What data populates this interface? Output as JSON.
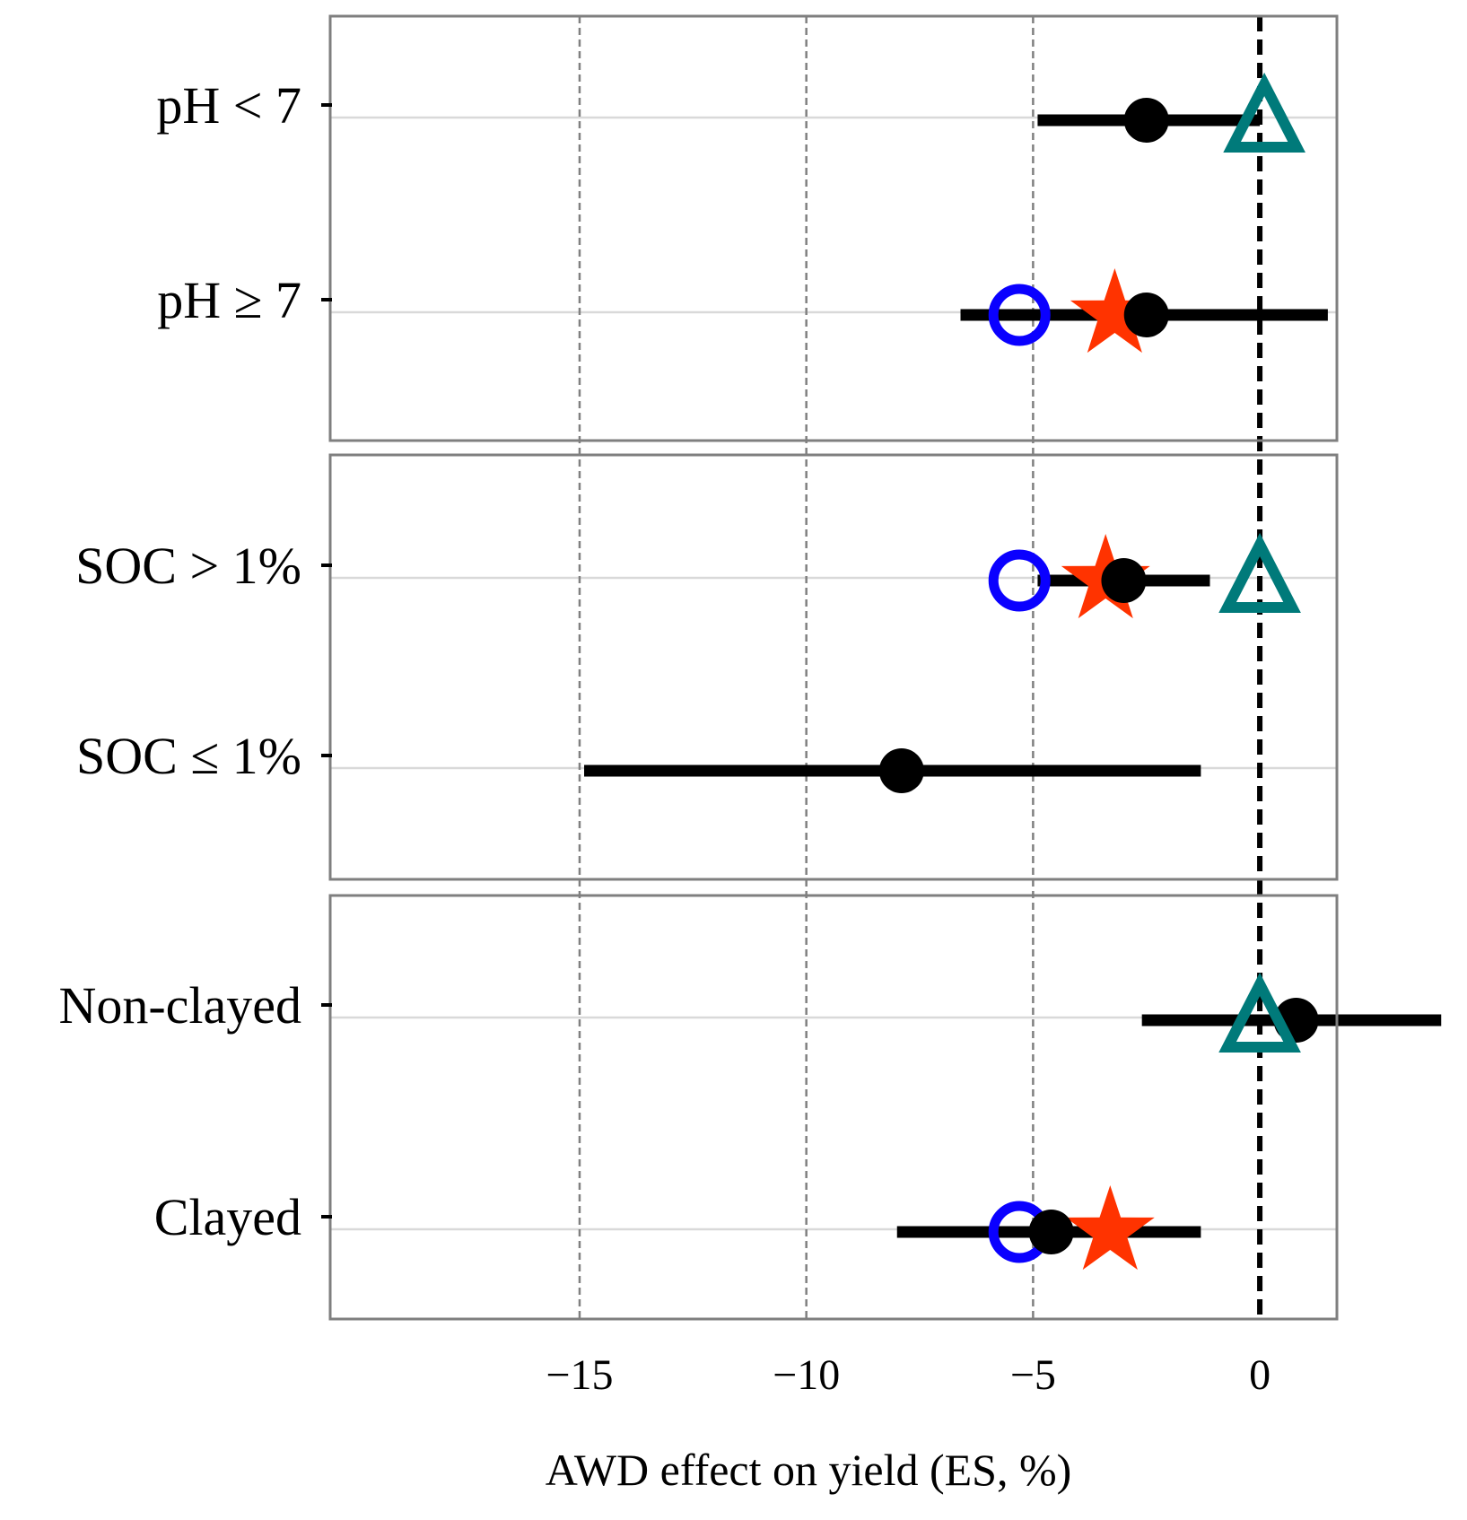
{
  "chart_data": {
    "type": "scatter",
    "subtype": "forest-plot",
    "xlabel": "AWD effect on yield (ES, %)",
    "ylabel": "",
    "xlim": [
      -20.5,
      1.7
    ],
    "x_ticks": [
      -15,
      -10,
      -5,
      0
    ],
    "x_tick_labels": [
      "−15",
      "−10",
      "−5",
      "0"
    ],
    "reference_line": 0,
    "vertical_gridlines": [
      -15,
      -10,
      -5
    ],
    "marker_colors": {
      "circle_filled": "#000000",
      "circle_open": "#0a00ff",
      "star": "#ff3300",
      "triangle_open": "#007a7a",
      "ci_line": "#000000"
    },
    "panels": [
      {
        "name": "soil-pH",
        "rows": [
          {
            "label": "pH < 7",
            "ci": [
              -4.9,
              0.0
            ],
            "points": [
              {
                "shape": "circle_filled",
                "x": -2.5
              },
              {
                "shape": "triangle_open",
                "x": 0.1
              }
            ]
          },
          {
            "label": "pH ≥ 7",
            "ci": [
              -6.6,
              1.5
            ],
            "points": [
              {
                "shape": "circle_open",
                "x": -5.3
              },
              {
                "shape": "star",
                "x": -3.2
              },
              {
                "shape": "circle_filled",
                "x": -2.5
              }
            ]
          }
        ]
      },
      {
        "name": "soil-organic-carbon",
        "rows": [
          {
            "label": "SOC > 1%",
            "ci": [
              -4.9,
              -1.1
            ],
            "points": [
              {
                "shape": "circle_open",
                "x": -5.3
              },
              {
                "shape": "star",
                "x": -3.4
              },
              {
                "shape": "circle_filled",
                "x": -3.0
              },
              {
                "shape": "triangle_open",
                "x": 0.0
              }
            ]
          },
          {
            "label": "SOC ≤ 1%",
            "ci": [
              -14.9,
              -1.3
            ],
            "points": [
              {
                "shape": "circle_filled",
                "x": -7.9
              }
            ]
          }
        ]
      },
      {
        "name": "clay-content",
        "rows": [
          {
            "label": "Non-clayed",
            "ci": [
              -2.6,
              4.0
            ],
            "points": [
              {
                "shape": "circle_filled",
                "x": 0.8
              },
              {
                "shape": "triangle_open",
                "x": 0.0
              }
            ]
          },
          {
            "label": "Clayed",
            "ci": [
              -8.0,
              -1.3
            ],
            "points": [
              {
                "shape": "circle_filled",
                "x": -4.6
              },
              {
                "shape": "circle_open",
                "x": -5.3
              },
              {
                "shape": "star",
                "x": -3.3
              }
            ]
          }
        ]
      }
    ]
  }
}
